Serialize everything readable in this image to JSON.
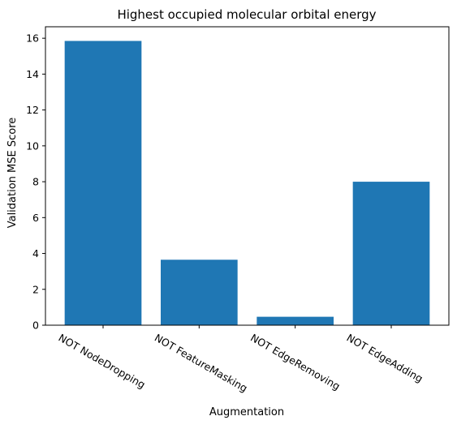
{
  "chart_data": {
    "type": "bar",
    "title": "Highest occupied molecular orbital energy",
    "xlabel": "Augmentation",
    "ylabel": "Validation MSE Score",
    "categories": [
      "NOT NodeDropping",
      "NOT FeatureMasking",
      "NOT EdgeRemoving",
      "NOT EdgeAdding"
    ],
    "values": [
      15.85,
      3.65,
      0.47,
      8.0
    ],
    "ylim": [
      0,
      16.64
    ],
    "yticks": [
      0,
      2,
      4,
      6,
      8,
      10,
      12,
      14,
      16
    ],
    "bar_color": "#1f77b4",
    "grid": false,
    "legend": "none",
    "xtick_rotation": "30 degrees clockwise"
  }
}
